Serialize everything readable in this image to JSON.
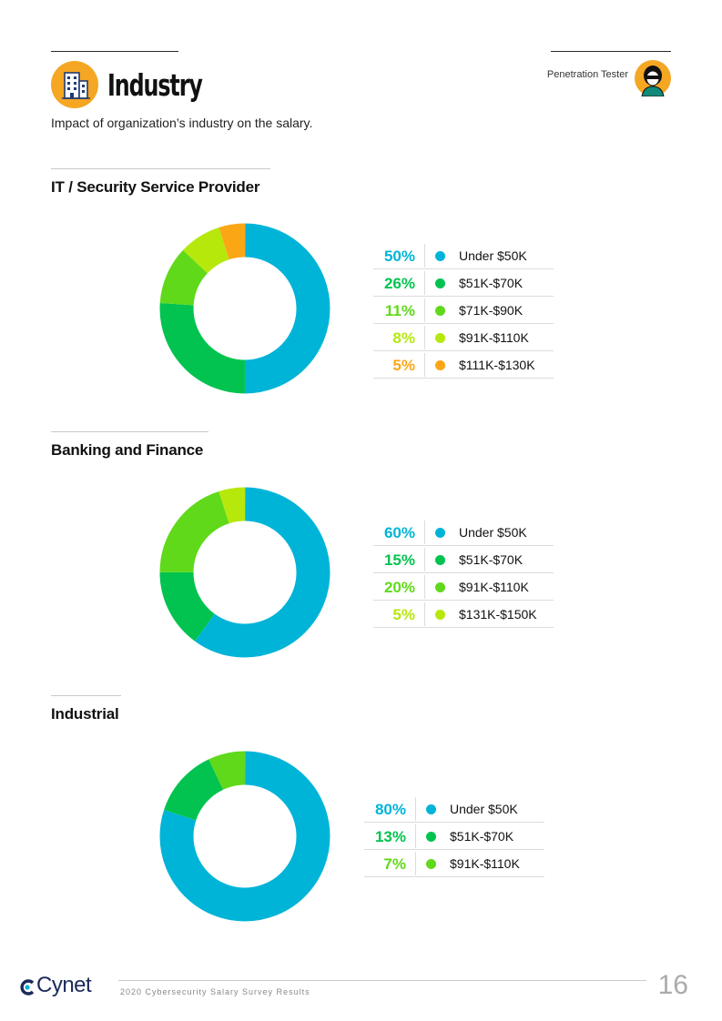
{
  "header": {
    "title": "Industry",
    "subtitle": "Impact of organization’s industry on the salary.",
    "role": "Penetration Tester",
    "icon": "building-icon",
    "accent_color": "#f5a623"
  },
  "colors": {
    "Under $50K": "#00b4d8",
    "$51K-$70K": "#02c34f",
    "$71K-$90K": "#5fd91a",
    "$91K-$110K": "#b6e80c",
    "$111K-$130K": "#fba715",
    "$131K-$150K": "#b6e80c"
  },
  "chart_data": [
    {
      "type": "pie",
      "title": "IT / Security Service Provider",
      "categories": [
        "Under $50K",
        "$51K-$70K",
        "$71K-$90K",
        "$91K-$110K",
        "$111K-$130K"
      ],
      "values": [
        50,
        26,
        11,
        8,
        5
      ],
      "labels": [
        "50%",
        "26%",
        "11%",
        "8%",
        "5%"
      ],
      "colors": [
        "#00b4d8",
        "#02c34f",
        "#5fd91a",
        "#b6e80c",
        "#fba715"
      ]
    },
    {
      "type": "pie",
      "title": "Banking and Finance",
      "categories": [
        "Under $50K",
        "$51K-$70K",
        "$91K-$110K",
        "$131K-$150K"
      ],
      "values": [
        60,
        15,
        20,
        5
      ],
      "labels": [
        "60%",
        "15%",
        "20%",
        "5%"
      ],
      "colors": [
        "#00b4d8",
        "#02c34f",
        "#5fd91a",
        "#b6e80c"
      ]
    },
    {
      "type": "pie",
      "title": "Industrial",
      "categories": [
        "Under $50K",
        "$51K-$70K",
        "$91K-$110K"
      ],
      "values": [
        80,
        13,
        7
      ],
      "labels": [
        "80%",
        "13%",
        "7%"
      ],
      "colors": [
        "#00b4d8",
        "#02c34f",
        "#5fd91a"
      ]
    }
  ],
  "footer": {
    "brand": "Cynet",
    "report": "2020 Cybersecurity Salary Survey Results",
    "page": "16"
  }
}
